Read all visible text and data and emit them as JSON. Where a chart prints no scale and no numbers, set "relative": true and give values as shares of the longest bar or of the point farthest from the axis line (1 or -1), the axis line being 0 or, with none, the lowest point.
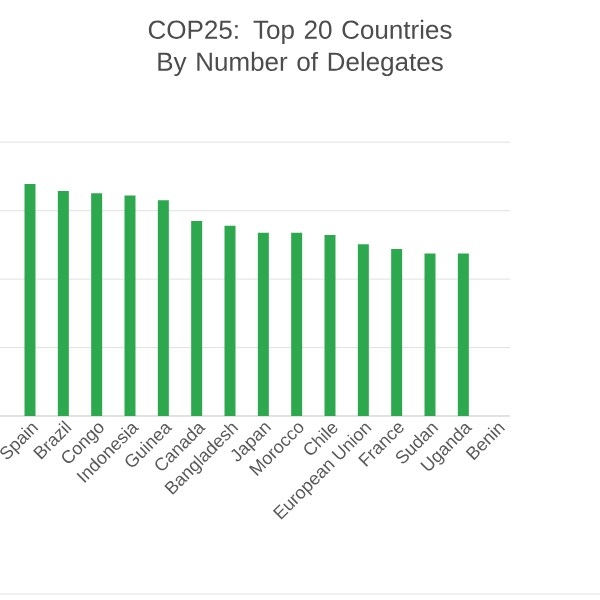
{
  "chart_data": {
    "type": "bar",
    "title": "COP25: Top 20 Countries By Number of Delegates",
    "categories": [
      "Spain",
      "Brazil",
      "Congo",
      "Indonesia",
      "Guinea",
      "Canada",
      "Bangladesh",
      "Japan",
      "Morocco",
      "Chile",
      "European Union",
      "France",
      "Sudan",
      "Uganda",
      "Benin"
    ],
    "values": [
      1,
      0.97,
      0.96,
      0.95,
      0.93,
      0.84,
      0.82,
      0.79,
      0.79,
      0.78,
      0.74,
      0.72,
      0.7,
      0.7,
      null
    ],
    "color": "#2ea84f",
    "relative": true,
    "grid": "y"
  }
}
